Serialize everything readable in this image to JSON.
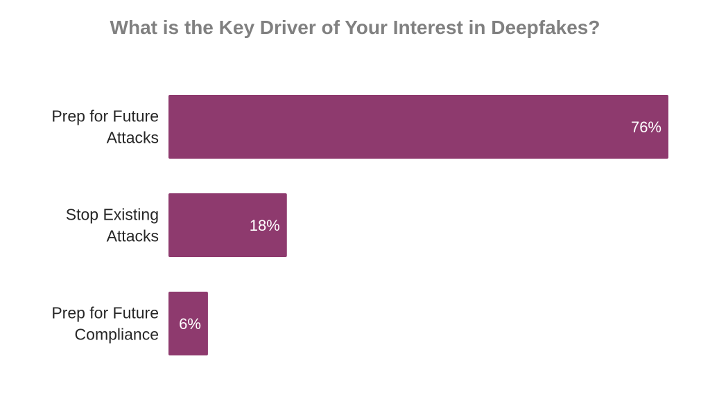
{
  "chart_data": {
    "type": "bar",
    "orientation": "horizontal",
    "title": "What is the Key Driver of Your Interest in Deepfakes?",
    "categories": [
      [
        "Prep for Future",
        "Attacks"
      ],
      [
        "Stop Existing",
        "Attacks"
      ],
      [
        "Prep for Future",
        "Compliance"
      ]
    ],
    "values": [
      76,
      18,
      6
    ],
    "value_labels": [
      "76%",
      "18%",
      "6%"
    ],
    "xlim": [
      0,
      76
    ],
    "grid": false,
    "legend": "none",
    "bar_color": "#8e3a6e",
    "title_color": "#808080",
    "label_color": "#262626",
    "value_label_color": "#ffffff"
  }
}
